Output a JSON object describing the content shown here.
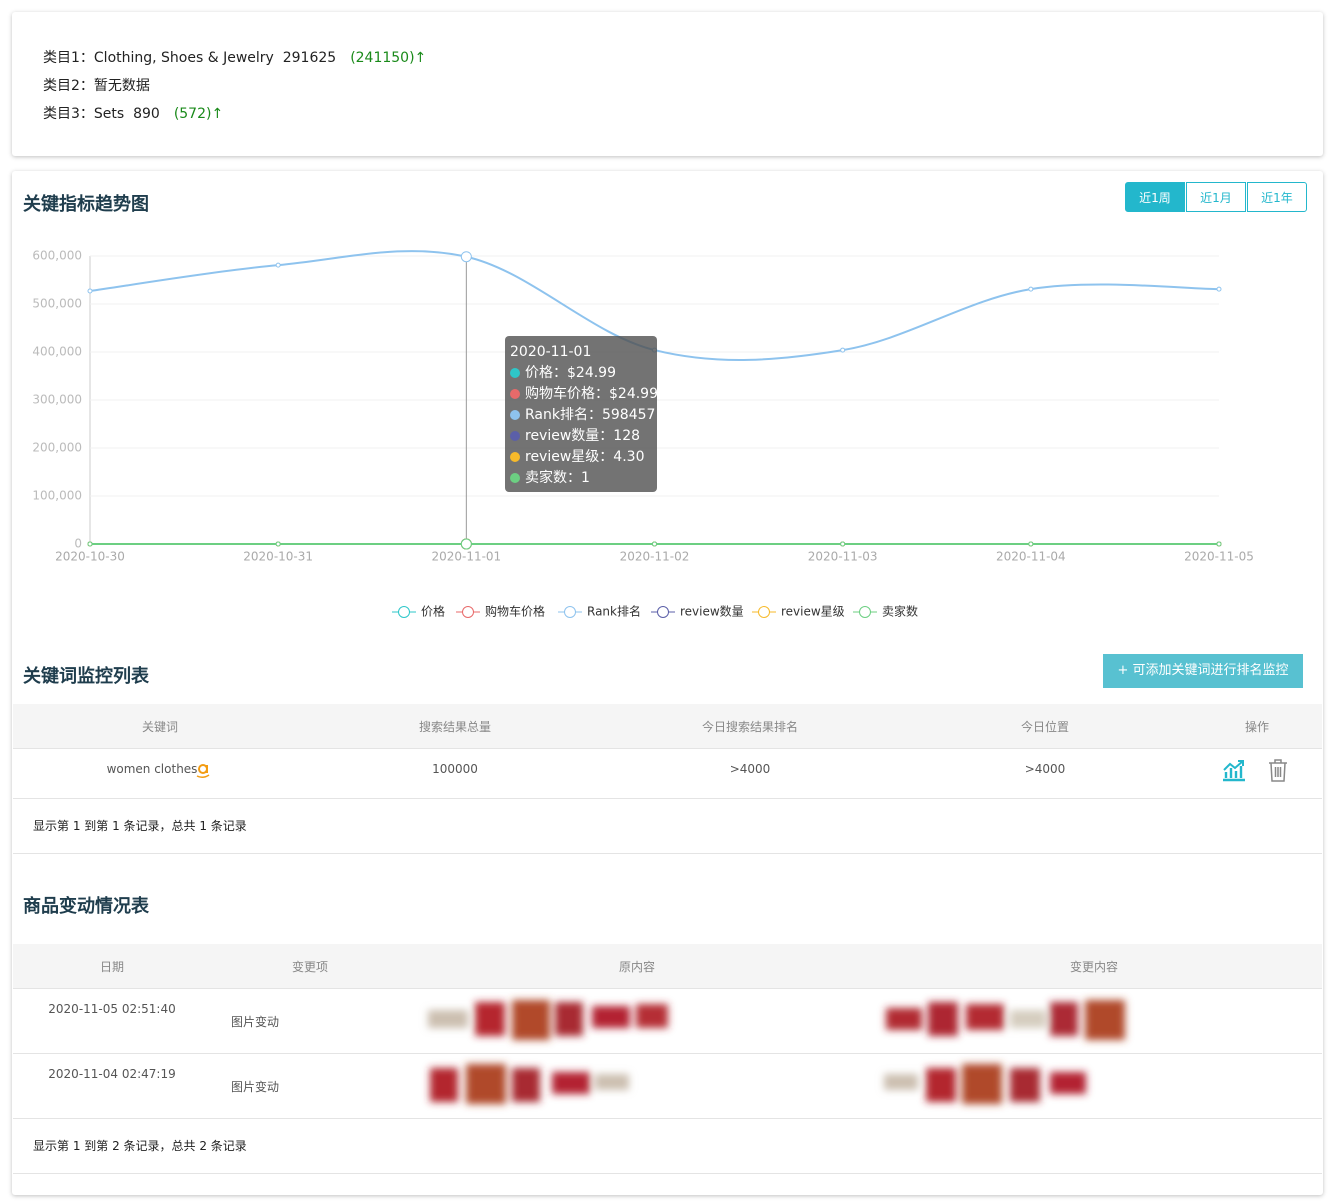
{
  "category_panel": {
    "items": [
      {
        "label": "类目1：Clothing, Shoes & Jewelry  291625",
        "change": "(241150)↑"
      },
      {
        "label": "类目2：暂无数据"
      },
      {
        "label": "类目3：Sets  890",
        "change": "(572)↑"
      }
    ]
  },
  "range_buttons": [
    "近1周",
    "近1月",
    "近1年"
  ],
  "chart_data": {
    "type": "line",
    "title": "关键指标趋势图",
    "categories": [
      "2020-10-30",
      "2020-10-31",
      "2020-11-01",
      "2020-11-02",
      "2020-11-03",
      "2020-11-04",
      "2020-11-05"
    ],
    "series": [
      {
        "name": "价格",
        "color": "#2ec7c9",
        "values": [
          24.99,
          24.99,
          24.99,
          24.99,
          24.99,
          24.99,
          24.99
        ]
      },
      {
        "name": "购物车价格",
        "color": "#e86a6a",
        "values": [
          24.99,
          24.99,
          24.99,
          24.99,
          24.99,
          24.99,
          24.99
        ]
      },
      {
        "name": "Rank排名",
        "color": "#8ec3ee",
        "values": [
          527000,
          581000,
          598457,
          404000,
          404000,
          531000,
          531000
        ]
      },
      {
        "name": "review数量",
        "color": "#5b5fa8",
        "values": [
          128,
          128,
          128,
          128,
          128,
          128,
          128
        ]
      },
      {
        "name": "review星级",
        "color": "#f7ba2a",
        "values": [
          4.3,
          4.3,
          4.3,
          4.3,
          4.3,
          4.3,
          4.3
        ]
      },
      {
        "name": "卖家数",
        "color": "#6ccf82",
        "values": [
          1,
          1,
          1,
          1,
          1,
          1,
          1
        ]
      }
    ],
    "ylim": [
      0,
      600000
    ],
    "yticks": [
      0,
      {
        "value": 100000,
        "label": "100,000"
      },
      {
        "value": 200000,
        "label": "200,000"
      },
      {
        "value": 300000,
        "label": "300,000"
      },
      {
        "value": 400000,
        "label": "400,000"
      },
      {
        "value": 500000,
        "label": "500,000"
      },
      {
        "value": 600000,
        "label": "600,000"
      }
    ],
    "grid": true,
    "tooltip": {
      "title": "2020-11-01",
      "items": [
        "价格：$24.99",
        "购物车价格：$24.99",
        "Rank排名：598457",
        "review数量：128",
        "review星级：4.30",
        "卖家数：1"
      ]
    }
  },
  "keyword_table": {
    "title": "关键词监控列表",
    "add_button": "+ 可添加关键词进行排名监控",
    "headers": [
      "关键词",
      "搜索结果总量",
      "今日搜索结果排名",
      "今日位置",
      "操作"
    ],
    "rows": [
      [
        "women clothes",
        100000,
        ">4000",
        ">4000"
      ]
    ],
    "footer": "显示第 1 到第 1 条记录，总共 1 条记录"
  },
  "change_table": {
    "title": "商品变动情况表",
    "headers": [
      "日期",
      "变更项",
      "原内容",
      "变更内容"
    ],
    "rows": [
      [
        "2020-11-05 02:51:40",
        "图片变动"
      ],
      [
        "2020-11-04 02:47:19",
        "图片变动"
      ]
    ],
    "footer": "显示第 1 到第 2 条记录，总共 2 条记录"
  }
}
